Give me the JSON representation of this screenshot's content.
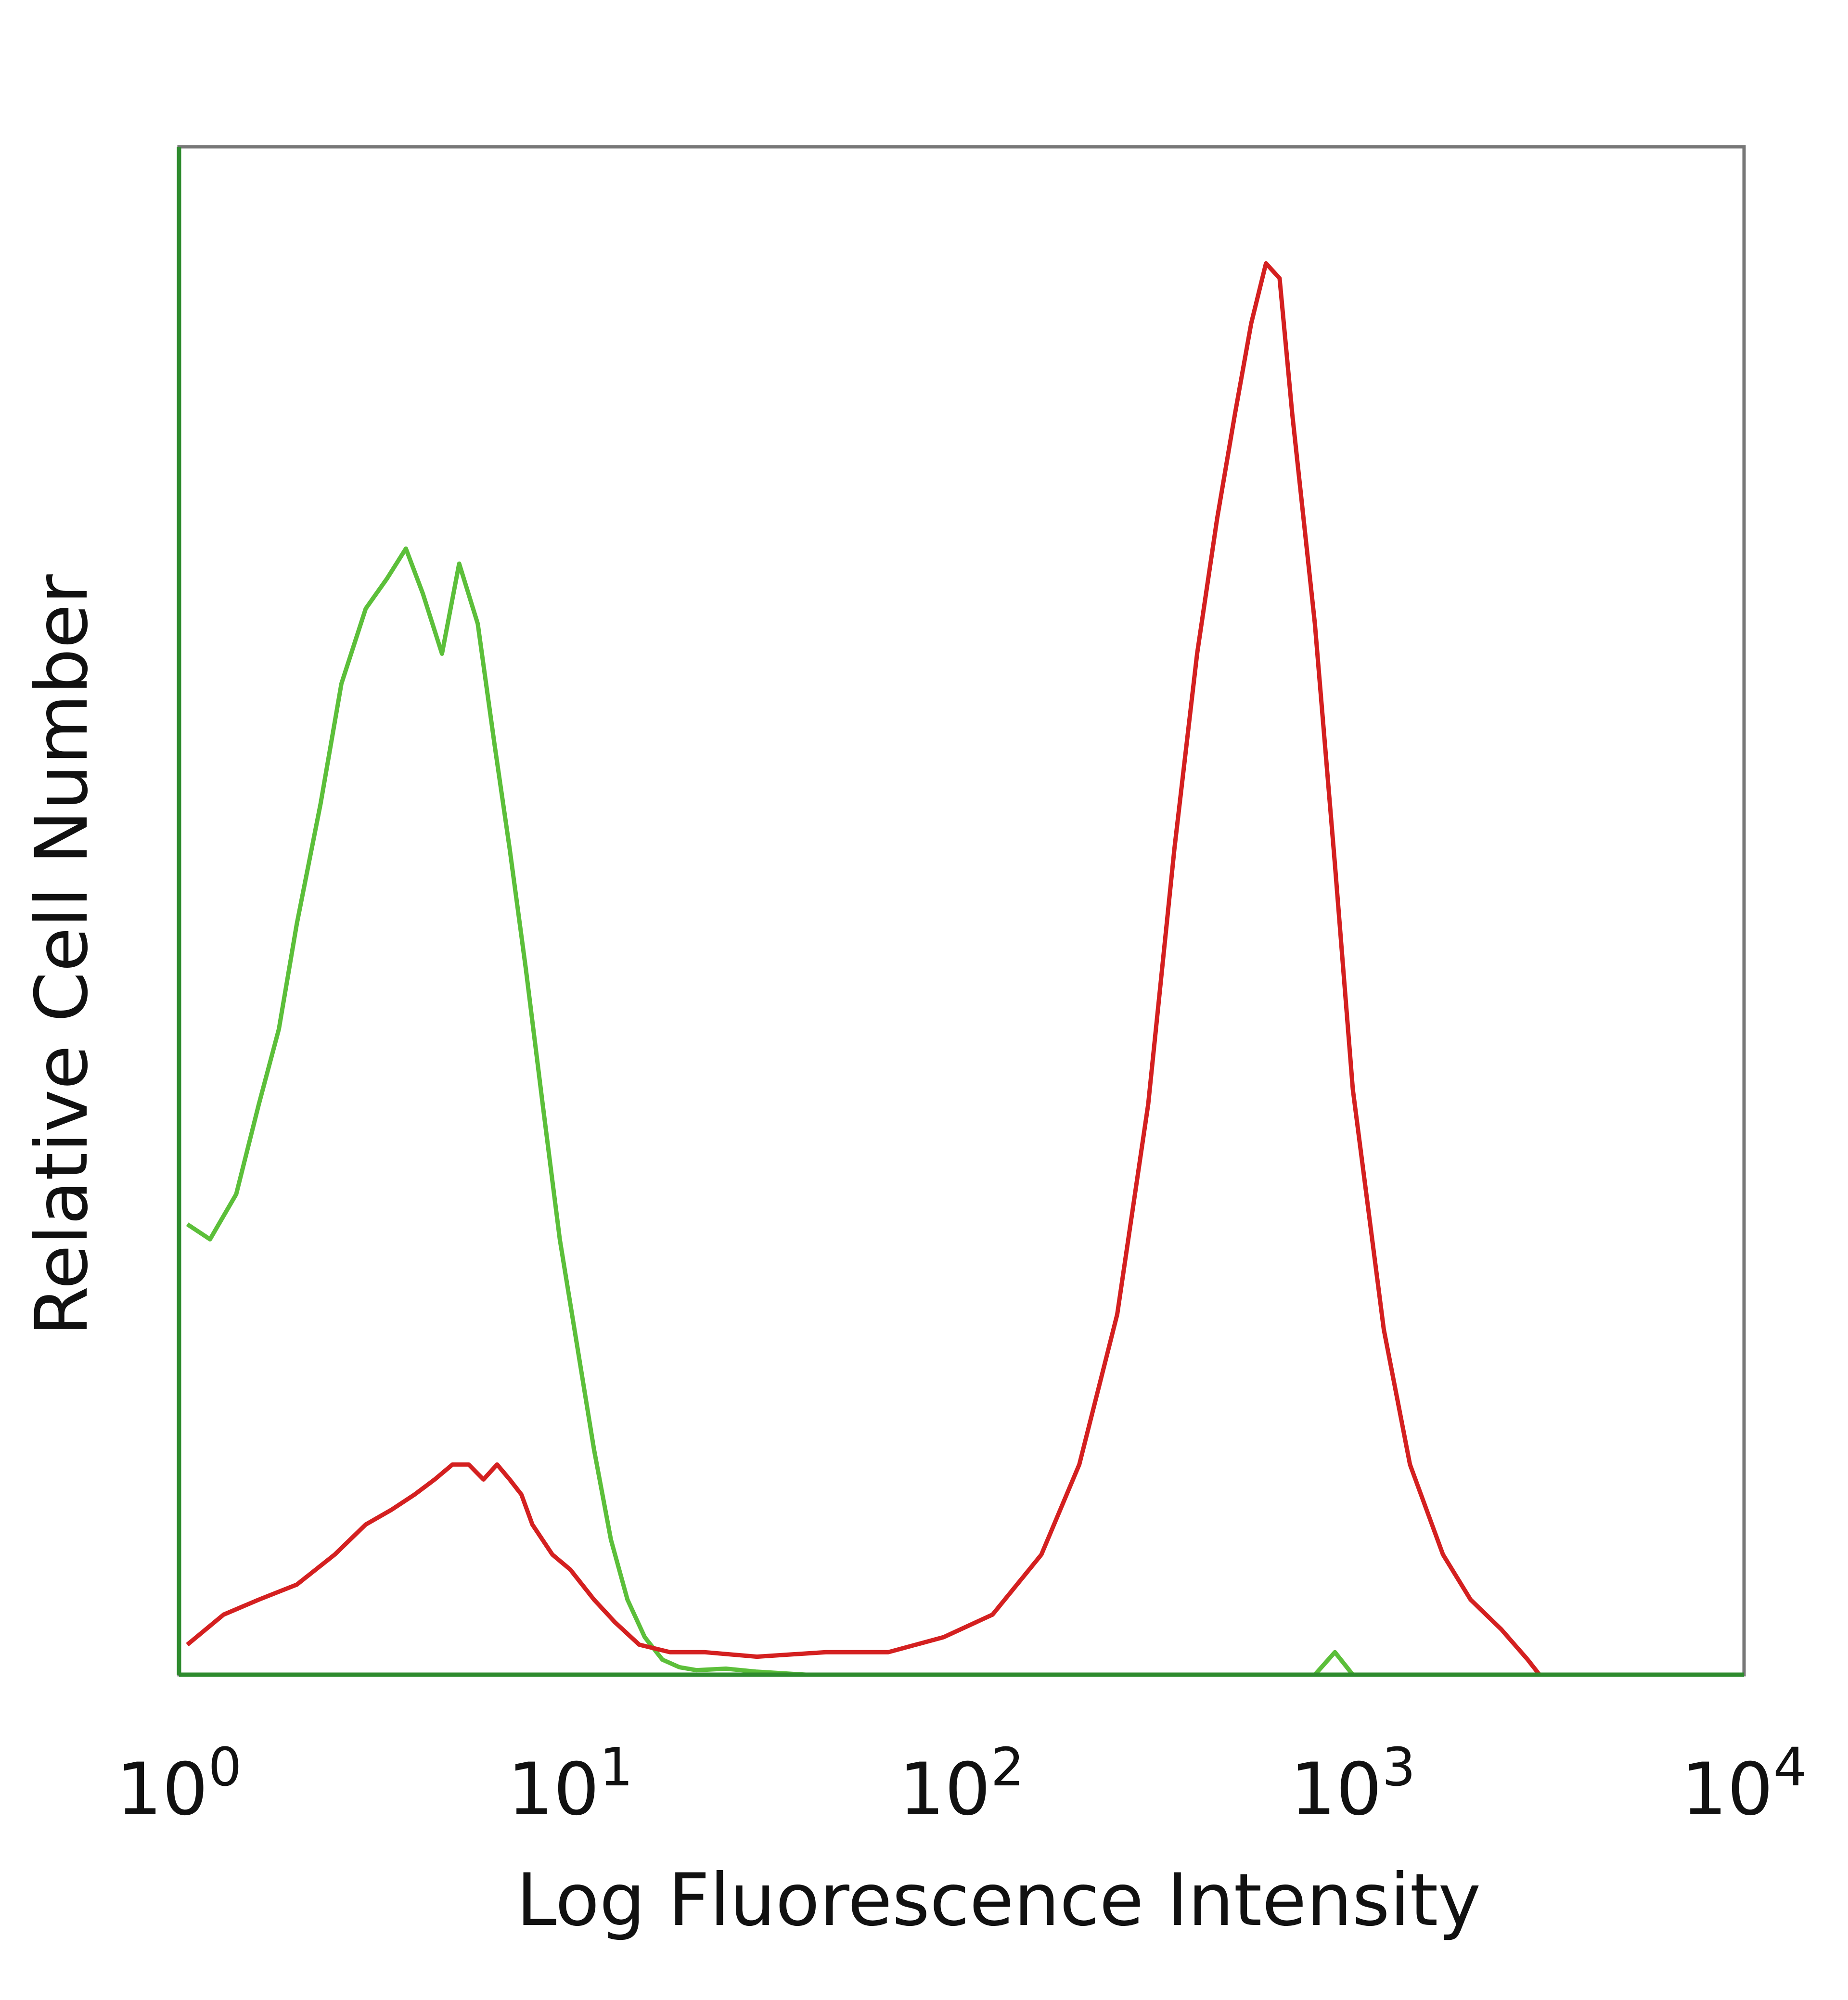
{
  "chart_data": {
    "type": "line",
    "title": "",
    "xlabel": "Log Fluorescence Intensity",
    "ylabel": "Relative Cell Number",
    "x_scale": "log",
    "xlim": [
      1,
      10000
    ],
    "ylim": [
      0,
      1
    ],
    "x_ticks": [
      {
        "value": 1,
        "base": "10",
        "exp": "0"
      },
      {
        "value": 10,
        "base": "10",
        "exp": "1"
      },
      {
        "value": 100,
        "base": "10",
        "exp": "2"
      },
      {
        "value": 1000,
        "base": "10",
        "exp": "3"
      },
      {
        "value": 10000,
        "base": "10",
        "exp": "4"
      }
    ],
    "grid": false,
    "legend": "none",
    "series": [
      {
        "color": "#5cbf3a",
        "x": [
          1.05,
          1.2,
          1.4,
          1.6,
          1.8,
          2.0,
          2.3,
          2.6,
          3.0,
          3.4,
          3.8,
          4.2,
          4.7,
          5.2,
          5.8,
          6.4,
          7.0,
          7.7,
          8.5,
          9.4,
          10.4,
          11.5,
          12.7,
          14.0,
          15.5,
          17.2,
          19.0,
          21.0,
          25.0,
          30.0,
          40.0,
          60.0,
          100.0,
          300.0,
          800.0,
          900.0,
          1000.0,
          3000.0,
          10000.0
        ],
        "y": [
          0.3,
          0.29,
          0.32,
          0.38,
          0.43,
          0.5,
          0.58,
          0.66,
          0.71,
          0.73,
          0.75,
          0.72,
          0.68,
          0.74,
          0.7,
          0.62,
          0.55,
          0.47,
          0.38,
          0.29,
          0.22,
          0.15,
          0.09,
          0.05,
          0.025,
          0.01,
          0.005,
          0.003,
          0.004,
          0.002,
          0.0,
          0.0,
          0.0,
          0.0,
          0.0,
          0.015,
          0.0,
          0.0,
          0.0
        ]
      },
      {
        "color": "#d42020",
        "x": [
          1.05,
          1.3,
          1.6,
          2.0,
          2.5,
          3.0,
          3.5,
          4.0,
          4.5,
          5.0,
          5.5,
          6.0,
          6.5,
          7.0,
          7.5,
          8.0,
          9.0,
          10.0,
          11.5,
          13.0,
          15.0,
          18.0,
          22.0,
          30.0,
          45.0,
          65.0,
          90.0,
          120.0,
          160.0,
          200.0,
          250.0,
          300.0,
          350.0,
          400.0,
          450.0,
          500.0,
          550.0,
          600.0,
          650.0,
          700.0,
          800.0,
          900.0,
          1000.0,
          1200.0,
          1400.0,
          1700.0,
          2000.0,
          2400.0,
          2800.0,
          3000.0
        ],
        "y": [
          0.02,
          0.04,
          0.05,
          0.06,
          0.08,
          0.1,
          0.11,
          0.12,
          0.13,
          0.14,
          0.14,
          0.13,
          0.14,
          0.13,
          0.12,
          0.1,
          0.08,
          0.07,
          0.05,
          0.035,
          0.02,
          0.015,
          0.015,
          0.012,
          0.015,
          0.015,
          0.025,
          0.04,
          0.08,
          0.14,
          0.24,
          0.38,
          0.55,
          0.68,
          0.77,
          0.84,
          0.9,
          0.94,
          0.93,
          0.84,
          0.7,
          0.54,
          0.39,
          0.23,
          0.14,
          0.08,
          0.05,
          0.03,
          0.01,
          0.0
        ]
      }
    ]
  }
}
